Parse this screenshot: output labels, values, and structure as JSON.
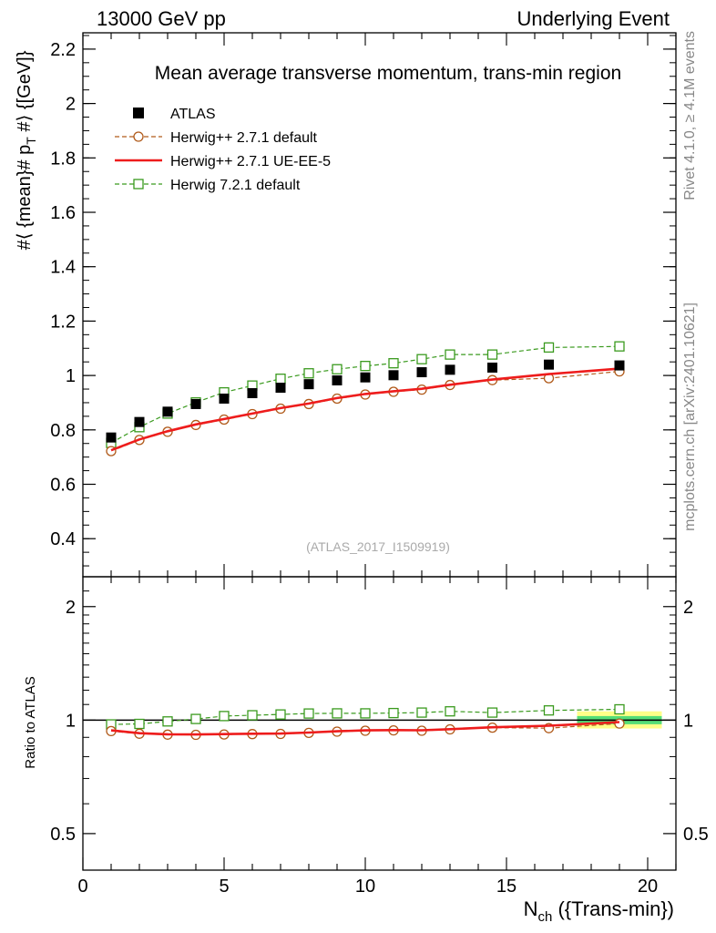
{
  "header": {
    "left": "13000 GeV pp",
    "right": "Underlying Event"
  },
  "side_labels": {
    "rivet": "Rivet 4.1.0, ≥ 4.1M events",
    "mcplots": "mcplots.cern.ch [arXiv:2401.10621]"
  },
  "chart_data": [
    {
      "type": "scatter",
      "title": "Mean average transverse momentum, trans-min region",
      "ylabel": "#⟨ {mean}# p_T #⟩ {[GeV]}",
      "ylabel_main": "#⟨ {mean}# p",
      "ylabel_sub": "T",
      "ylabel_end": " #⟩ {[GeV]}",
      "xlabel": "",
      "watermark": "(ATLAS_2017_I1509919)",
      "xlim": [
        0,
        21
      ],
      "ylim": [
        0.26,
        2.26
      ],
      "y_ticks": [
        "0.4",
        "0.6",
        "0.8",
        "1",
        "1.2",
        "1.4",
        "1.6",
        "1.8",
        "2",
        "2.2"
      ],
      "legend_position": "top-left",
      "series": [
        {
          "name": "ATLAS",
          "style": "data",
          "color": "#000000",
          "x": [
            1,
            2,
            3,
            4,
            5,
            6,
            7,
            8,
            9,
            10,
            11,
            12,
            13,
            14.5,
            16.5,
            19
          ],
          "y": [
            0.772,
            0.829,
            0.867,
            0.895,
            0.915,
            0.935,
            0.955,
            0.968,
            0.982,
            0.993,
            1.001,
            1.012,
            1.021,
            1.029,
            1.04,
            1.037
          ]
        },
        {
          "name": "Herwig++ 2.7.1 default",
          "style": "dashed-circle",
          "color": "#b05a1a",
          "x": [
            1,
            2,
            3,
            4,
            5,
            6,
            7,
            8,
            9,
            10,
            11,
            12,
            13,
            14.5,
            16.5,
            19
          ],
          "y": [
            0.722,
            0.763,
            0.793,
            0.818,
            0.838,
            0.858,
            0.878,
            0.895,
            0.915,
            0.93,
            0.94,
            0.948,
            0.965,
            0.983,
            0.99,
            1.015
          ]
        },
        {
          "name": "Herwig++ 2.7.1 UE-EE-5",
          "style": "solid",
          "color": "#ee1c1c",
          "x": [
            1,
            2,
            3,
            4,
            5,
            6,
            7,
            8,
            9,
            10,
            11,
            12,
            13,
            14.5,
            16.5,
            19
          ],
          "y": [
            0.725,
            0.765,
            0.795,
            0.82,
            0.84,
            0.86,
            0.88,
            0.897,
            0.917,
            0.932,
            0.942,
            0.951,
            0.966,
            0.985,
            1.005,
            1.025
          ]
        },
        {
          "name": "Herwig 7.2.1 default",
          "style": "dashed-square",
          "color": "#3a9a1e",
          "x": [
            1,
            2,
            3,
            4,
            5,
            6,
            7,
            8,
            9,
            10,
            11,
            12,
            13,
            14.5,
            16.5,
            19
          ],
          "y": [
            0.752,
            0.81,
            0.86,
            0.901,
            0.938,
            0.963,
            0.988,
            1.008,
            1.023,
            1.035,
            1.045,
            1.06,
            1.077,
            1.077,
            1.103,
            1.107
          ]
        }
      ]
    },
    {
      "type": "scatter",
      "title": "",
      "ylabel": "Ratio to ATLAS",
      "xlabel_main": "N",
      "xlabel_sub": "ch",
      "xlabel_end": " ({Trans-min})",
      "xlim": [
        0,
        21
      ],
      "ylim": [
        0.4,
        2.4
      ],
      "ylog": true,
      "x_ticks": [
        "0",
        "5",
        "10",
        "15",
        "20"
      ],
      "y_ticks": [
        "0.5",
        "1",
        "2"
      ],
      "uncertainty_band": {
        "x_range": [
          17.5,
          20.5
        ],
        "inner": [
          0.975,
          1.025
        ],
        "outer": [
          0.95,
          1.055
        ],
        "inner_color": "#55dd77",
        "outer_color": "#ffff88"
      },
      "series": [
        {
          "name": "Herwig++ 2.7.1 default",
          "style": "dashed-circle",
          "color": "#b05a1a",
          "x": [
            1,
            2,
            3,
            4,
            5,
            6,
            7,
            8,
            9,
            10,
            11,
            12,
            13,
            14.5,
            16.5,
            19
          ],
          "y": [
            0.935,
            0.92,
            0.915,
            0.914,
            0.916,
            0.918,
            0.919,
            0.925,
            0.932,
            0.937,
            0.939,
            0.937,
            0.945,
            0.955,
            0.952,
            0.979
          ]
        },
        {
          "name": "Herwig++ 2.7.1 UE-EE-5",
          "style": "solid",
          "color": "#ee1c1c",
          "x": [
            1,
            2,
            3,
            4,
            5,
            6,
            7,
            8,
            9,
            10,
            11,
            12,
            13,
            14.5,
            16.5,
            19
          ],
          "y": [
            0.939,
            0.923,
            0.917,
            0.916,
            0.918,
            0.92,
            0.921,
            0.927,
            0.934,
            0.939,
            0.941,
            0.94,
            0.946,
            0.957,
            0.966,
            0.988
          ]
        },
        {
          "name": "Herwig 7.2.1 default",
          "style": "dashed-square",
          "color": "#3a9a1e",
          "x": [
            1,
            2,
            3,
            4,
            5,
            6,
            7,
            8,
            9,
            10,
            11,
            12,
            13,
            14.5,
            16.5,
            19
          ],
          "y": [
            0.974,
            0.977,
            0.992,
            1.007,
            1.025,
            1.03,
            1.035,
            1.041,
            1.042,
            1.042,
            1.044,
            1.047,
            1.055,
            1.047,
            1.061,
            1.068
          ]
        }
      ]
    }
  ]
}
